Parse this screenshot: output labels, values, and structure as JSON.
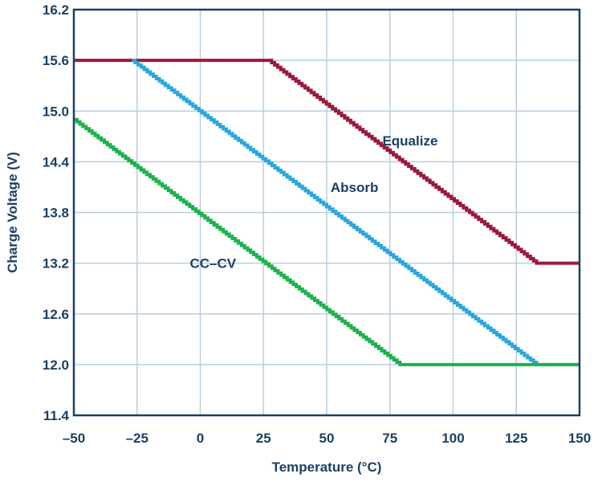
{
  "chart_data": {
    "type": "line",
    "xlabel": "Temperature (°C)",
    "ylabel": "Charge Voltage (V)",
    "xlim": [
      -50,
      150
    ],
    "ylim": [
      11.4,
      16.2
    ],
    "grid": true,
    "xticks": [
      -50,
      -25,
      0,
      25,
      50,
      75,
      100,
      125,
      150
    ],
    "xtick_labels": [
      "–50",
      "–25",
      "0",
      "25",
      "50",
      "75",
      "100",
      "125",
      "150"
    ],
    "yticks": [
      11.4,
      12.0,
      12.6,
      13.2,
      13.8,
      14.4,
      15.0,
      15.6,
      16.2
    ],
    "ytick_labels": [
      "11.4",
      "12.0",
      "12.6",
      "13.2",
      "13.8",
      "14.4",
      "15.0",
      "15.6",
      "16.2"
    ],
    "colors": {
      "axis": "#1b3f66",
      "grid": "#b9cfe0",
      "text": "#1b3f66"
    },
    "series": [
      {
        "label": "Equalize",
        "color": "#9a1a3c",
        "stepped": true,
        "points": [
          [
            -50,
            15.6
          ],
          [
            27,
            15.6
          ],
          [
            133,
            13.2
          ],
          [
            150,
            13.2
          ]
        ],
        "label_at": [
          83,
          14.65
        ]
      },
      {
        "label": "Absorb",
        "color": "#2aa7dc",
        "stepped": true,
        "points": [
          [
            -27,
            15.6
          ],
          [
            133,
            12.0
          ],
          [
            150,
            12.0
          ]
        ],
        "label_at": [
          61,
          14.1
        ]
      },
      {
        "label": "CC–CV",
        "color": "#1db24b",
        "stepped": true,
        "points": [
          [
            -50,
            14.9
          ],
          [
            79,
            12.0
          ],
          [
            150,
            12.0
          ]
        ],
        "label_at": [
          5,
          13.2
        ]
      }
    ]
  }
}
